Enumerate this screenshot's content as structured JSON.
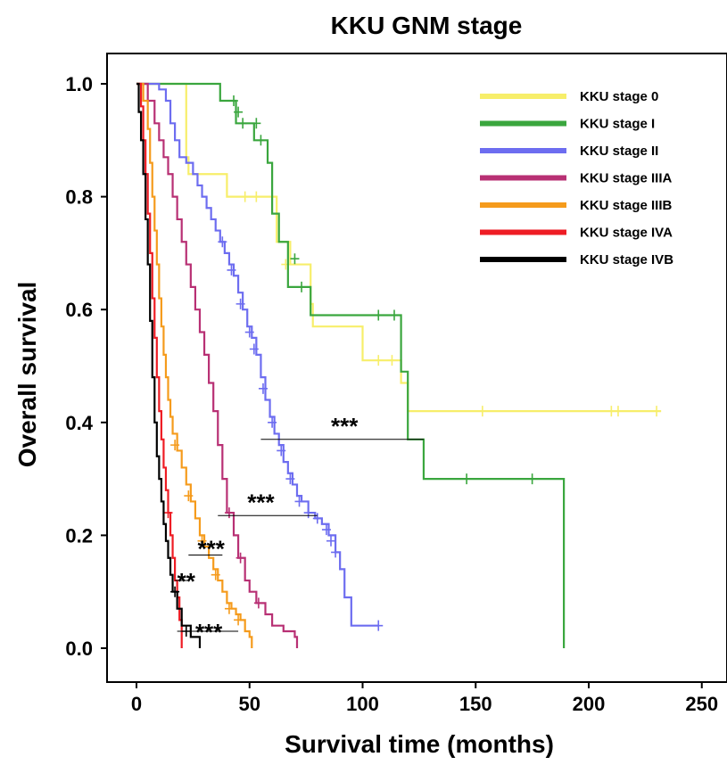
{
  "chart_data": {
    "type": "line",
    "title": "KKU GNM stage",
    "xlabel": "Survival time (months)",
    "ylabel": "Overall survival",
    "xlim": [
      0,
      260
    ],
    "ylim": [
      0,
      1.05
    ],
    "x_ticks": [
      "0",
      "50",
      "100",
      "150",
      "200",
      "250"
    ],
    "y_ticks": [
      "0.0",
      "0.2",
      "0.4",
      "0.6",
      "0.8",
      "1.0"
    ],
    "grid": false,
    "legend_position": "top-right",
    "series": [
      {
        "name": "KKU stage 0",
        "color": "#f7ee6a",
        "steps": [
          [
            0,
            1.0
          ],
          [
            22,
            1.0
          ],
          [
            22,
            0.87
          ],
          [
            23,
            0.87
          ],
          [
            23,
            0.84
          ],
          [
            40,
            0.84
          ],
          [
            40,
            0.8
          ],
          [
            45,
            0.8
          ],
          [
            45,
            0.8
          ],
          [
            62,
            0.8
          ],
          [
            62,
            0.72
          ],
          [
            68,
            0.72
          ],
          [
            68,
            0.68
          ],
          [
            77,
            0.68
          ],
          [
            77,
            0.61
          ],
          [
            78,
            0.61
          ],
          [
            78,
            0.57
          ],
          [
            100,
            0.57
          ],
          [
            100,
            0.51
          ],
          [
            117,
            0.51
          ],
          [
            117,
            0.47
          ],
          [
            120,
            0.47
          ],
          [
            120,
            0.42
          ],
          [
            232,
            0.42
          ]
        ],
        "censors": [
          [
            48,
            0.8
          ],
          [
            53,
            0.8
          ],
          [
            66,
            0.68
          ],
          [
            107,
            0.51
          ],
          [
            113,
            0.51
          ],
          [
            153,
            0.42
          ],
          [
            210,
            0.42
          ],
          [
            213,
            0.42
          ],
          [
            230,
            0.42
          ]
        ]
      },
      {
        "name": "KKU stage I",
        "color": "#3aa63e",
        "steps": [
          [
            0,
            1.0
          ],
          [
            22,
            1.0
          ],
          [
            22,
            1.0
          ],
          [
            37,
            1.0
          ],
          [
            37,
            0.97
          ],
          [
            44,
            0.97
          ],
          [
            44,
            0.93
          ],
          [
            52,
            0.93
          ],
          [
            52,
            0.9
          ],
          [
            58,
            0.9
          ],
          [
            58,
            0.86
          ],
          [
            60,
            0.86
          ],
          [
            60,
            0.77
          ],
          [
            63,
            0.77
          ],
          [
            63,
            0.72
          ],
          [
            67,
            0.72
          ],
          [
            67,
            0.64
          ],
          [
            77,
            0.64
          ],
          [
            77,
            0.59
          ],
          [
            117,
            0.59
          ],
          [
            117,
            0.49
          ],
          [
            120,
            0.49
          ],
          [
            120,
            0.37
          ],
          [
            127,
            0.37
          ],
          [
            127,
            0.3
          ],
          [
            189,
            0.3
          ],
          [
            189,
            0.0
          ]
        ],
        "censors": [
          [
            43,
            0.97
          ],
          [
            45,
            0.95
          ],
          [
            47,
            0.93
          ],
          [
            53,
            0.93
          ],
          [
            55,
            0.9
          ],
          [
            70,
            0.69
          ],
          [
            73,
            0.64
          ],
          [
            107,
            0.59
          ],
          [
            114,
            0.59
          ],
          [
            146,
            0.3
          ],
          [
            175,
            0.3
          ]
        ]
      },
      {
        "name": "KKU stage II",
        "color": "#6d6df0",
        "steps": [
          [
            0,
            1.0
          ],
          [
            10,
            1.0
          ],
          [
            10,
            0.99
          ],
          [
            13,
            0.97
          ],
          [
            15,
            0.93
          ],
          [
            17,
            0.9
          ],
          [
            19,
            0.87
          ],
          [
            22,
            0.86
          ],
          [
            25,
            0.84
          ],
          [
            27,
            0.82
          ],
          [
            29,
            0.8
          ],
          [
            31,
            0.78
          ],
          [
            33,
            0.76
          ],
          [
            35,
            0.74
          ],
          [
            37,
            0.72
          ],
          [
            39,
            0.7
          ],
          [
            41,
            0.68
          ],
          [
            43,
            0.66
          ],
          [
            45,
            0.63
          ],
          [
            47,
            0.6
          ],
          [
            49,
            0.57
          ],
          [
            51,
            0.55
          ],
          [
            53,
            0.52
          ],
          [
            55,
            0.48
          ],
          [
            57,
            0.44
          ],
          [
            59,
            0.41
          ],
          [
            61,
            0.38
          ],
          [
            63,
            0.36
          ],
          [
            65,
            0.33
          ],
          [
            67,
            0.31
          ],
          [
            69,
            0.29
          ],
          [
            71,
            0.27
          ],
          [
            73,
            0.26
          ],
          [
            76,
            0.24
          ],
          [
            79,
            0.23
          ],
          [
            82,
            0.22
          ],
          [
            85,
            0.2
          ],
          [
            88,
            0.17
          ],
          [
            90,
            0.14
          ],
          [
            92,
            0.09
          ],
          [
            95,
            0.04
          ],
          [
            107,
            0.04
          ]
        ],
        "censors": [
          [
            38,
            0.72
          ],
          [
            42,
            0.67
          ],
          [
            46,
            0.61
          ],
          [
            50,
            0.56
          ],
          [
            52,
            0.53
          ],
          [
            56,
            0.46
          ],
          [
            60,
            0.4
          ],
          [
            64,
            0.35
          ],
          [
            68,
            0.3
          ],
          [
            72,
            0.26
          ],
          [
            76,
            0.24
          ],
          [
            80,
            0.23
          ],
          [
            84,
            0.21
          ],
          [
            86,
            0.19
          ],
          [
            88,
            0.17
          ],
          [
            107,
            0.04
          ]
        ]
      },
      {
        "name": "KKU stage IIIA",
        "color": "#b83074",
        "steps": [
          [
            0,
            1.0
          ],
          [
            5,
            1.0
          ],
          [
            5,
            0.97
          ],
          [
            8,
            0.93
          ],
          [
            10,
            0.9
          ],
          [
            12,
            0.87
          ],
          [
            14,
            0.84
          ],
          [
            16,
            0.8
          ],
          [
            18,
            0.76
          ],
          [
            20,
            0.72
          ],
          [
            22,
            0.68
          ],
          [
            24,
            0.64
          ],
          [
            26,
            0.6
          ],
          [
            28,
            0.56
          ],
          [
            30,
            0.52
          ],
          [
            32,
            0.47
          ],
          [
            34,
            0.42
          ],
          [
            36,
            0.36
          ],
          [
            38,
            0.3
          ],
          [
            40,
            0.24
          ],
          [
            43,
            0.2
          ],
          [
            45,
            0.16
          ],
          [
            48,
            0.12
          ],
          [
            50,
            0.1
          ],
          [
            53,
            0.08
          ],
          [
            57,
            0.06
          ],
          [
            60,
            0.04
          ],
          [
            65,
            0.03
          ],
          [
            70,
            0.02
          ],
          [
            71,
            0.0
          ]
        ],
        "censors": [
          [
            41,
            0.24
          ],
          [
            46,
            0.16
          ],
          [
            54,
            0.08
          ]
        ]
      },
      {
        "name": "KKU stage IIIB",
        "color": "#f59b1c",
        "steps": [
          [
            0,
            1.0
          ],
          [
            3,
            1.0
          ],
          [
            3,
            0.97
          ],
          [
            5,
            0.92
          ],
          [
            6,
            0.86
          ],
          [
            7,
            0.8
          ],
          [
            8,
            0.74
          ],
          [
            9,
            0.68
          ],
          [
            10,
            0.62
          ],
          [
            11,
            0.57
          ],
          [
            12,
            0.52
          ],
          [
            13,
            0.48
          ],
          [
            14,
            0.44
          ],
          [
            15,
            0.41
          ],
          [
            16,
            0.38
          ],
          [
            18,
            0.35
          ],
          [
            20,
            0.32
          ],
          [
            22,
            0.29
          ],
          [
            24,
            0.26
          ],
          [
            26,
            0.23
          ],
          [
            28,
            0.2
          ],
          [
            30,
            0.18
          ],
          [
            32,
            0.16
          ],
          [
            34,
            0.14
          ],
          [
            36,
            0.12
          ],
          [
            38,
            0.1
          ],
          [
            40,
            0.08
          ],
          [
            42,
            0.07
          ],
          [
            44,
            0.06
          ],
          [
            46,
            0.05
          ],
          [
            48,
            0.03
          ],
          [
            50,
            0.02
          ],
          [
            51,
            0.0
          ]
        ],
        "censors": [
          [
            17,
            0.36
          ],
          [
            23,
            0.27
          ],
          [
            29,
            0.19
          ],
          [
            35,
            0.13
          ],
          [
            41,
            0.07
          ],
          [
            45,
            0.05
          ]
        ]
      },
      {
        "name": "KKU stage IVA",
        "color": "#ee1c24",
        "steps": [
          [
            0,
            1.0
          ],
          [
            2,
            1.0
          ],
          [
            2,
            0.96
          ],
          [
            3,
            0.9
          ],
          [
            4,
            0.84
          ],
          [
            5,
            0.77
          ],
          [
            6,
            0.7
          ],
          [
            7,
            0.62
          ],
          [
            8,
            0.55
          ],
          [
            9,
            0.48
          ],
          [
            10,
            0.42
          ],
          [
            11,
            0.37
          ],
          [
            12,
            0.32
          ],
          [
            13,
            0.28
          ],
          [
            14,
            0.24
          ],
          [
            15,
            0.2
          ],
          [
            16,
            0.16
          ],
          [
            17,
            0.12
          ],
          [
            18,
            0.09
          ],
          [
            19,
            0.05
          ],
          [
            20,
            0.0
          ]
        ],
        "censors": [
          [
            14,
            0.24
          ]
        ]
      },
      {
        "name": "KKU stage IVB",
        "color": "#000000",
        "steps": [
          [
            0,
            1.0
          ],
          [
            1,
            1.0
          ],
          [
            1,
            0.95
          ],
          [
            2,
            0.9
          ],
          [
            3,
            0.84
          ],
          [
            4,
            0.76
          ],
          [
            5,
            0.68
          ],
          [
            6,
            0.58
          ],
          [
            7,
            0.48
          ],
          [
            8,
            0.4
          ],
          [
            9,
            0.34
          ],
          [
            10,
            0.3
          ],
          [
            11,
            0.26
          ],
          [
            12,
            0.22
          ],
          [
            13,
            0.19
          ],
          [
            14,
            0.16
          ],
          [
            15,
            0.13
          ],
          [
            16,
            0.1
          ],
          [
            18,
            0.07
          ],
          [
            20,
            0.04
          ],
          [
            24,
            0.02
          ],
          [
            28,
            0.0
          ]
        ],
        "censors": [
          [
            17,
            0.1
          ],
          [
            22,
            0.03
          ]
        ]
      }
    ],
    "annotations": [
      {
        "text": "***",
        "x": 92,
        "y": 0.395,
        "line": [
          [
            55,
            0.37
          ],
          [
            127,
            0.37
          ]
        ]
      },
      {
        "text": "***",
        "x": 55,
        "y": 0.26,
        "line": [
          [
            36,
            0.235
          ],
          [
            80,
            0.235
          ]
        ]
      },
      {
        "text": "***",
        "x": 33,
        "y": 0.178,
        "line": [
          [
            23,
            0.165
          ],
          [
            38,
            0.165
          ]
        ]
      },
      {
        "text": "**",
        "x": 22,
        "y": 0.12,
        "line": [
          [
            17,
            0.12
          ],
          [
            23,
            0.12
          ]
        ]
      },
      {
        "text": "***",
        "x": 32,
        "y": 0.03,
        "line": [
          [
            18,
            0.03
          ],
          [
            45,
            0.03
          ]
        ]
      }
    ]
  }
}
